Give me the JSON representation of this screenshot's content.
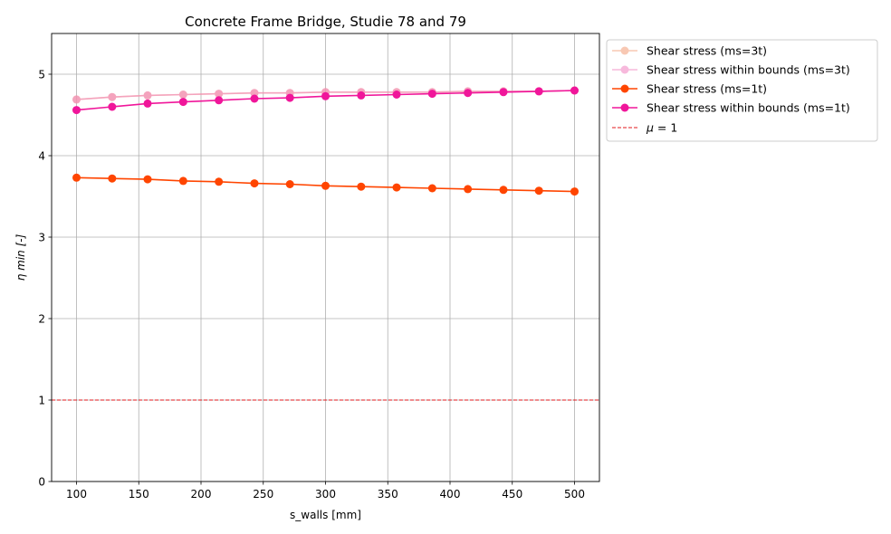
{
  "chart_data": {
    "type": "line",
    "title": "Concrete Frame Bridge, Studie 78 and 79",
    "xlabel": "s_walls [mm]",
    "ylabel": "η min [-]",
    "xlim": [
      80,
      520
    ],
    "ylim": [
      0,
      5.5
    ],
    "xticks": [
      100,
      150,
      200,
      250,
      300,
      350,
      400,
      450,
      500
    ],
    "yticks": [
      0,
      1,
      2,
      3,
      4,
      5
    ],
    "grid": true,
    "legend_placement": "outside-top-right",
    "x": [
      100,
      128.6,
      157.1,
      185.7,
      214.3,
      242.9,
      271.4,
      300,
      328.6,
      357.1,
      385.7,
      414.3,
      442.9,
      471.4,
      500
    ],
    "series": [
      {
        "name": "Shear stress (ms=3t)",
        "color": "#f4a582",
        "faded": true,
        "values": [
          4.69,
          4.72,
          4.74,
          4.75,
          4.76,
          4.77,
          4.77,
          4.78,
          4.78,
          4.78,
          4.78,
          4.79,
          4.79,
          4.79,
          4.8
        ]
      },
      {
        "name": "Shear stress within bounds (ms=3t)",
        "color": "#f38cc5",
        "faded": true,
        "values": [
          4.69,
          4.72,
          4.74,
          4.75,
          4.76,
          4.77,
          4.77,
          4.78,
          4.78,
          4.78,
          4.78,
          4.79,
          4.79,
          4.79,
          4.8
        ]
      },
      {
        "name": "Shear stress (ms=1t)",
        "color": "#ff4500",
        "faded": false,
        "values": [
          3.73,
          3.72,
          3.71,
          3.69,
          3.68,
          3.66,
          3.65,
          3.63,
          3.62,
          3.61,
          3.6,
          3.59,
          3.58,
          3.57,
          3.56
        ]
      },
      {
        "name": "Shear stress within bounds (ms=1t)",
        "color": "#f0169a",
        "faded": false,
        "values": [
          4.56,
          4.6,
          4.64,
          4.66,
          4.68,
          4.7,
          4.71,
          4.73,
          4.74,
          4.75,
          4.76,
          4.77,
          4.78,
          4.79,
          4.8
        ]
      }
    ],
    "reference_line": {
      "name": "μ = 1",
      "name_prefix": "μ",
      "name_suffix": " = 1",
      "y": 1,
      "color": "#e31a1c",
      "style": "dashed"
    }
  }
}
